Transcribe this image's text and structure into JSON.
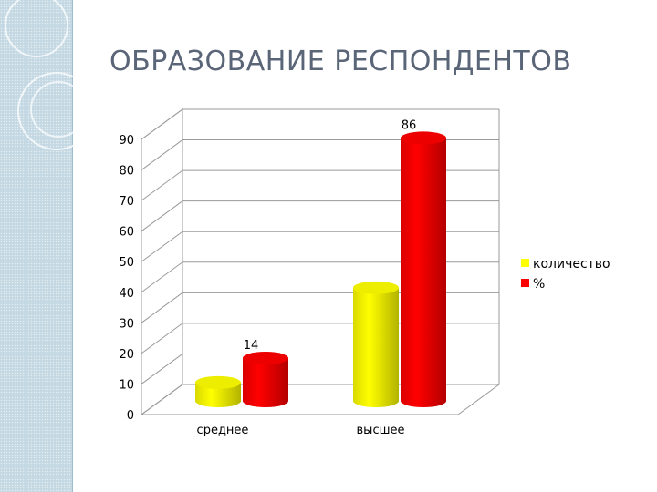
{
  "slide": {
    "title": "ОБРАЗОВАНИЕ РЕСПОНДЕНТОВ"
  },
  "colors": {
    "series_1": "#ffff00",
    "series_2": "#ff0000",
    "gridline": "#9a9a9a",
    "text": "#000000",
    "title": "#5a6577"
  },
  "chart_data": {
    "type": "bar",
    "style": "3d-cylinder",
    "categories": [
      "среднее",
      "высшее"
    ],
    "series": [
      {
        "name": "количество",
        "values": [
          6,
          37
        ],
        "color": "#ffff00",
        "data_labels": [
          null,
          null
        ]
      },
      {
        "name": "%",
        "values": [
          14,
          86
        ],
        "color": "#ff0000",
        "data_labels": [
          "14",
          "86"
        ]
      }
    ],
    "ylim": [
      0,
      90
    ],
    "yticks": [
      0,
      10,
      20,
      30,
      40,
      50,
      60,
      70,
      80,
      90
    ],
    "grid": true,
    "legend": "right"
  }
}
